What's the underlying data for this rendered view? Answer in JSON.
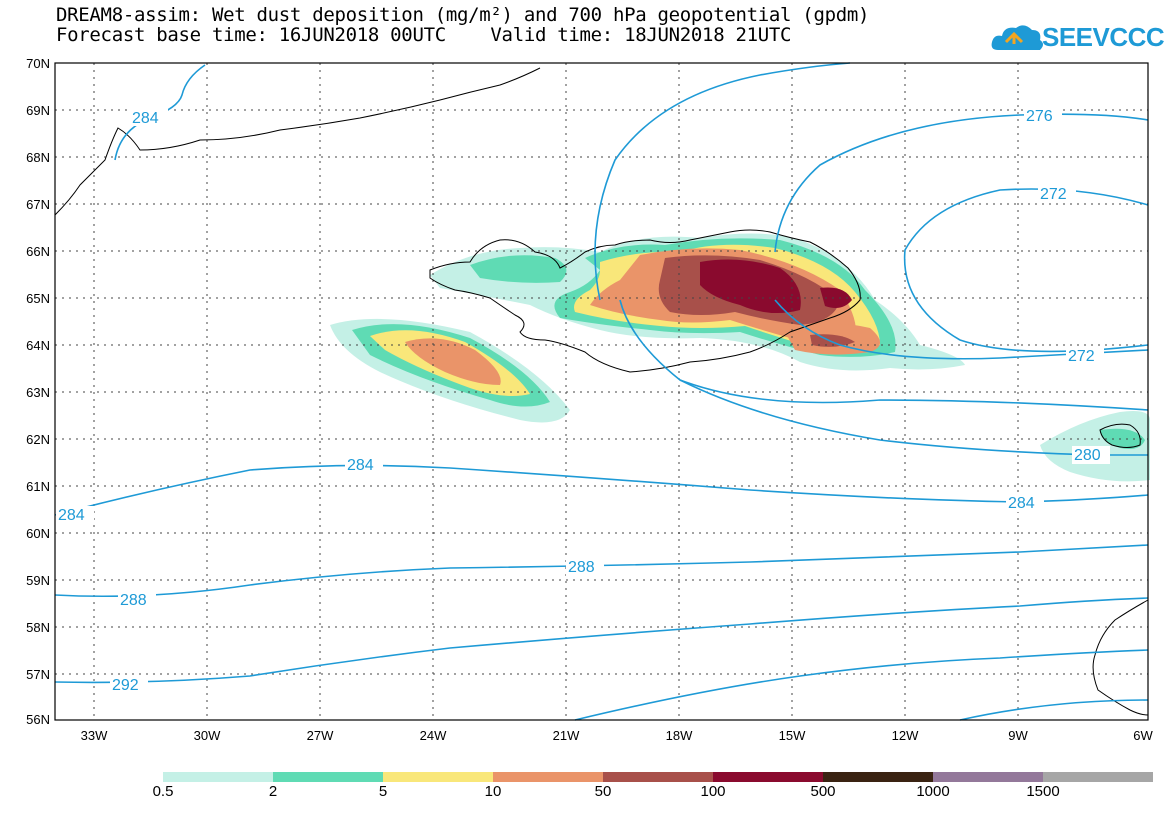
{
  "title_line1": "DREAM8-assim: Wet dust deposition (mg/m²) and 700 hPa geopotential (gpdm)",
  "title_line2": "Forecast base time: 16JUN2018 00UTC    Valid time: 18JUN2018 21UTC",
  "logo_text": "SEEVCCC",
  "lat_labels": [
    "70N",
    "69N",
    "68N",
    "67N",
    "66N",
    "65N",
    "64N",
    "63N",
    "62N",
    "61N",
    "60N",
    "59N",
    "58N",
    "57N",
    "56N"
  ],
  "lon_labels": [
    "33W",
    "30W",
    "27W",
    "24W",
    "21W",
    "18W",
    "15W",
    "12W",
    "9W",
    "6W"
  ],
  "contour_labels": [
    "284",
    "276",
    "272",
    "272",
    "284",
    "280",
    "284",
    "284",
    "288",
    "288",
    "292"
  ],
  "colorbar": {
    "labels": [
      "0.5",
      "2",
      "5",
      "10",
      "50",
      "100",
      "500",
      "1000",
      "1500"
    ],
    "colors": [
      "#c4f0e6",
      "#5fdbb4",
      "#f9e77a",
      "#ea9469",
      "#a8504a",
      "#8a0a2e",
      "#3a2312",
      "#93789a",
      "#a6a6a6"
    ]
  },
  "map_colors": {
    "contour": "#1e9ad6",
    "coast": "#000000"
  }
}
